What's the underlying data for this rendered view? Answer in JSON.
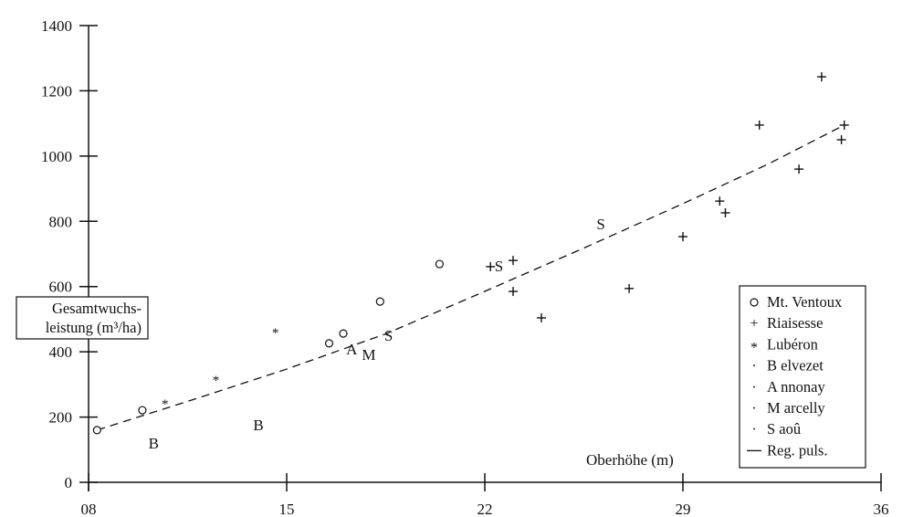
{
  "chart_data": {
    "type": "scatter",
    "xlabel": "Oberhöhe (m)",
    "ylabel_lines": [
      "Gesamtwuchs-",
      "leistung (m³/ha)"
    ],
    "xlim": [
      8,
      36
    ],
    "ylim": [
      0,
      1400
    ],
    "xticks": [
      8,
      15,
      22,
      29,
      36
    ],
    "xtick_labels": [
      "08",
      "15",
      "22",
      "29",
      "36"
    ],
    "yticks": [
      0,
      200,
      400,
      600,
      800,
      1000,
      1200,
      1400
    ],
    "ytick_labels": [
      "0",
      "200",
      "400",
      "600",
      "800",
      "1000",
      "1200",
      "1400"
    ],
    "grid": false,
    "legend_position": "bottom-right",
    "series": [
      {
        "name": "Mt. Ventoux",
        "marker": "○",
        "points": [
          [
            8.3,
            160
          ],
          [
            9.9,
            221
          ],
          [
            16.5,
            426
          ],
          [
            17.0,
            456
          ],
          [
            18.3,
            554
          ],
          [
            20.4,
            669
          ]
        ]
      },
      {
        "name": "Riaisesse",
        "marker": "+",
        "points": [
          [
            22.2,
            661
          ],
          [
            23.0,
            680
          ],
          [
            23.0,
            585
          ],
          [
            24.0,
            504
          ],
          [
            27.1,
            594
          ],
          [
            29.0,
            753
          ],
          [
            30.3,
            862
          ],
          [
            30.5,
            826
          ],
          [
            31.7,
            1095
          ],
          [
            33.1,
            960
          ],
          [
            33.9,
            1243
          ],
          [
            34.6,
            1050
          ],
          [
            34.7,
            1095
          ]
        ]
      },
      {
        "name": "Lubéron",
        "marker": "*",
        "points": [
          [
            10.7,
            246
          ],
          [
            12.5,
            319
          ],
          [
            14.6,
            465
          ]
        ]
      },
      {
        "name": "B elvezet",
        "marker": "B",
        "legend_marker": "·",
        "points": [
          [
            10.3,
            120
          ],
          [
            14.0,
            176
          ]
        ]
      },
      {
        "name": "A nnonay",
        "marker": "A",
        "legend_marker": "·",
        "points": [
          [
            17.3,
            409
          ]
        ]
      },
      {
        "name": "M arcelly",
        "marker": "M",
        "legend_marker": "·",
        "points": [
          [
            17.9,
            392
          ]
        ]
      },
      {
        "name": "S aoû",
        "marker": "S",
        "legend_marker": "·",
        "points": [
          [
            18.6,
            451
          ],
          [
            22.5,
            664
          ],
          [
            26.1,
            792
          ]
        ]
      }
    ],
    "regression": {
      "name": "Reg. puls.",
      "legend_marker": "—",
      "points": [
        [
          8.3,
          160
        ],
        [
          11.5,
          248
        ],
        [
          15,
          347
        ],
        [
          18.5,
          455
        ],
        [
          21.7,
          574
        ],
        [
          25.5,
          718
        ],
        [
          29,
          854
        ],
        [
          32,
          975
        ],
        [
          34.7,
          1095
        ]
      ]
    }
  }
}
